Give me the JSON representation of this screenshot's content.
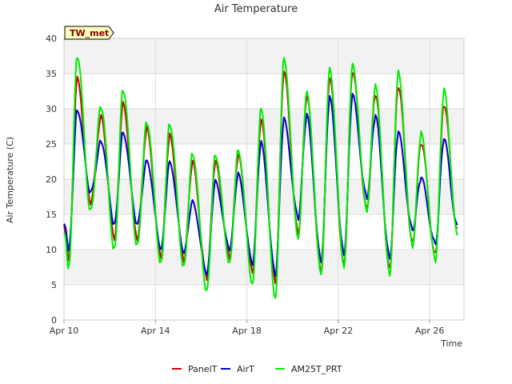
{
  "chart_data": {
    "type": "line",
    "title": "Air Temperature",
    "xlabel": "Time",
    "ylabel": "Air Temperature (C)",
    "badge": "TW_met",
    "ylim": [
      0,
      40
    ],
    "xlim": [
      "2025-04-10",
      "2025-04-27T12:00"
    ],
    "yticks": [
      0,
      5,
      10,
      15,
      20,
      25,
      30,
      35,
      40
    ],
    "xticks": [
      "2025-04-10",
      "2025-04-14",
      "2025-04-18",
      "2025-04-22",
      "2025-04-26"
    ],
    "xtick_labels": [
      "Apr 10",
      "Apr 14",
      "Apr 18",
      "Apr 22",
      "Apr 26"
    ],
    "grid": true,
    "legend_position": "bottom",
    "series": [
      {
        "name": "PanelT",
        "color": "#cc0000",
        "x": [
          "2025-04-10T00:00",
          "2025-04-10T05:00",
          "2025-04-10T14:00",
          "2025-04-11T04:00",
          "2025-04-11T15:00",
          "2025-04-12T05:00",
          "2025-04-12T14:00",
          "2025-04-13T05:00",
          "2025-04-13T15:00",
          "2025-04-14T06:00",
          "2025-04-14T15:00",
          "2025-04-15T06:00",
          "2025-04-15T15:00",
          "2025-04-16T06:00",
          "2025-04-16T15:00",
          "2025-04-17T06:00",
          "2025-04-17T15:00",
          "2025-04-18T06:00",
          "2025-04-18T15:00",
          "2025-04-19T06:00",
          "2025-04-19T15:00",
          "2025-04-20T06:00",
          "2025-04-20T15:00",
          "2025-04-21T06:00",
          "2025-04-21T15:00",
          "2025-04-22T06:00",
          "2025-04-22T15:00",
          "2025-04-23T06:00",
          "2025-04-23T15:00",
          "2025-04-24T06:00",
          "2025-04-24T15:00",
          "2025-04-25T06:00",
          "2025-04-25T15:00",
          "2025-04-26T06:00",
          "2025-04-26T15:00",
          "2025-04-27T05:00"
        ],
        "y": [
          13.5,
          8.5,
          34.5,
          16.5,
          29.0,
          11.5,
          30.8,
          11.5,
          27.2,
          9.0,
          26.2,
          8.5,
          22.3,
          6.0,
          22.3,
          9.0,
          23.2,
          7.0,
          28.2,
          5.5,
          35.0,
          12.5,
          31.5,
          7.0,
          34.2,
          8.0,
          35.0,
          16.0,
          31.8,
          7.5,
          33.0,
          11.2,
          25.0,
          9.5,
          30.5,
          13.0
        ]
      },
      {
        "name": "AirT",
        "color": "#0000cc",
        "x": [
          "2025-04-10T00:00",
          "2025-04-10T05:00",
          "2025-04-10T14:00",
          "2025-04-11T04:00",
          "2025-04-11T15:00",
          "2025-04-12T05:00",
          "2025-04-12T14:00",
          "2025-04-13T05:00",
          "2025-04-13T15:00",
          "2025-04-14T06:00",
          "2025-04-14T15:00",
          "2025-04-15T06:00",
          "2025-04-15T15:00",
          "2025-04-16T06:00",
          "2025-04-16T15:00",
          "2025-04-17T06:00",
          "2025-04-17T15:00",
          "2025-04-18T06:00",
          "2025-04-18T15:00",
          "2025-04-19T06:00",
          "2025-04-19T15:00",
          "2025-04-20T06:00",
          "2025-04-20T15:00",
          "2025-04-21T06:00",
          "2025-04-21T15:00",
          "2025-04-22T06:00",
          "2025-04-22T15:00",
          "2025-04-23T06:00",
          "2025-04-23T15:00",
          "2025-04-24T06:00",
          "2025-04-24T15:00",
          "2025-04-25T06:00",
          "2025-04-25T15:00",
          "2025-04-26T06:00",
          "2025-04-26T15:00",
          "2025-04-27T05:00"
        ],
        "y": [
          14.0,
          10.0,
          30.0,
          18.0,
          25.5,
          13.5,
          26.8,
          13.5,
          22.8,
          10.0,
          22.6,
          9.5,
          17.0,
          6.5,
          19.8,
          10.0,
          20.8,
          8.0,
          25.2,
          6.5,
          28.5,
          14.5,
          29.0,
          8.5,
          31.5,
          9.5,
          31.8,
          17.5,
          28.8,
          9.0,
          26.5,
          13.0,
          20.0,
          11.0,
          25.5,
          13.5
        ]
      },
      {
        "name": "AM25T_PRT",
        "color": "#00ee00",
        "x": [
          "2025-04-10T00:00",
          "2025-04-10T05:00",
          "2025-04-10T14:00",
          "2025-04-11T04:00",
          "2025-04-11T15:00",
          "2025-04-12T05:00",
          "2025-04-12T14:00",
          "2025-04-13T05:00",
          "2025-04-13T15:00",
          "2025-04-14T06:00",
          "2025-04-14T15:00",
          "2025-04-15T06:00",
          "2025-04-15T15:00",
          "2025-04-16T06:00",
          "2025-04-16T15:00",
          "2025-04-17T06:00",
          "2025-04-17T15:00",
          "2025-04-18T06:00",
          "2025-04-18T15:00",
          "2025-04-19T06:00",
          "2025-04-19T15:00",
          "2025-04-20T06:00",
          "2025-04-20T15:00",
          "2025-04-21T06:00",
          "2025-04-21T15:00",
          "2025-04-22T06:00",
          "2025-04-22T15:00",
          "2025-04-23T06:00",
          "2025-04-23T15:00",
          "2025-04-24T06:00",
          "2025-04-24T15:00",
          "2025-04-25T06:00",
          "2025-04-25T15:00",
          "2025-04-26T06:00",
          "2025-04-26T15:00",
          "2025-04-27T05:00"
        ],
        "y": [
          12.5,
          7.5,
          37.5,
          15.5,
          30.3,
          10.0,
          32.8,
          10.5,
          28.2,
          8.0,
          28.0,
          7.5,
          23.8,
          4.0,
          23.6,
          8.0,
          24.3,
          5.0,
          30.2,
          3.0,
          37.3,
          11.5,
          32.5,
          6.5,
          35.8,
          7.5,
          36.3,
          15.5,
          33.3,
          6.5,
          35.2,
          10.5,
          26.5,
          8.5,
          32.6,
          12.0
        ]
      }
    ]
  }
}
